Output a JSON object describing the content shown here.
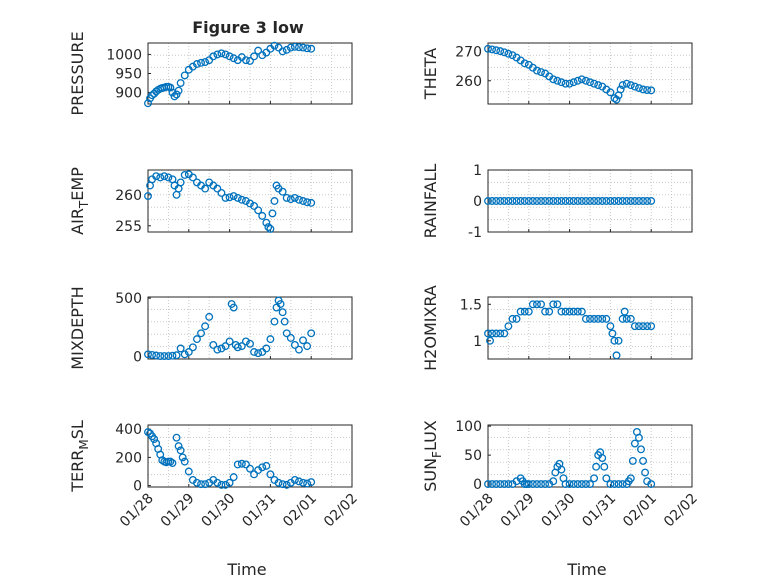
{
  "figure_title": "Figure 3 low",
  "colors": {
    "marker": "#0072bd",
    "axes": "#262626",
    "grid": "#c8c8c8"
  },
  "x_axis": {
    "label": "Time",
    "tick_labels": [
      "01/28",
      "01/29",
      "01/30",
      "01/31",
      "02/01",
      "02/02"
    ]
  },
  "chart_data": [
    {
      "type": "scatter",
      "id": "pressure",
      "ylabel": "PRESSURE",
      "title": "Figure 3 low",
      "ylim": [
        870,
        1030
      ],
      "yticks": [
        900,
        950,
        1000
      ],
      "xlim": [
        0,
        5
      ],
      "series": [
        {
          "name": "PRESSURE",
          "x": [
            0.0,
            0.05,
            0.1,
            0.15,
            0.2,
            0.25,
            0.3,
            0.35,
            0.4,
            0.45,
            0.5,
            0.55,
            0.6,
            0.65,
            0.7,
            0.75,
            0.8,
            0.9,
            1.0,
            1.1,
            1.2,
            1.3,
            1.4,
            1.5,
            1.6,
            1.7,
            1.8,
            1.9,
            2.0,
            2.1,
            2.2,
            2.3,
            2.4,
            2.5,
            2.6,
            2.7,
            2.8,
            2.9,
            3.0,
            3.1,
            3.2,
            3.3,
            3.4,
            3.5,
            3.6,
            3.7,
            3.8,
            3.9,
            4.0
          ],
          "y": [
            872,
            885,
            893,
            897,
            903,
            907,
            910,
            912,
            913,
            915,
            915,
            913,
            900,
            890,
            895,
            905,
            925,
            945,
            960,
            968,
            975,
            978,
            980,
            985,
            995,
            1000,
            1003,
            1000,
            995,
            990,
            985,
            993,
            985,
            983,
            995,
            1010,
            998,
            1005,
            1015,
            1023,
            1018,
            1008,
            1012,
            1018,
            1020,
            1019,
            1018,
            1016,
            1015
          ]
        }
      ]
    },
    {
      "type": "scatter",
      "id": "theta",
      "ylabel": "THETA",
      "ylim": [
        252,
        273
      ],
      "yticks": [
        260,
        270
      ],
      "xlim": [
        0,
        5
      ],
      "series": [
        {
          "name": "THETA",
          "x": [
            0.0,
            0.1,
            0.2,
            0.3,
            0.4,
            0.5,
            0.6,
            0.7,
            0.8,
            0.9,
            1.0,
            1.1,
            1.2,
            1.3,
            1.4,
            1.5,
            1.6,
            1.7,
            1.8,
            1.9,
            2.0,
            2.1,
            2.2,
            2.3,
            2.4,
            2.5,
            2.6,
            2.7,
            2.8,
            2.9,
            3.0,
            3.1,
            3.15,
            3.2,
            3.25,
            3.3,
            3.4,
            3.5,
            3.6,
            3.7,
            3.8,
            3.9,
            4.0
          ],
          "y": [
            271,
            270.8,
            270.5,
            270.2,
            269.8,
            269.3,
            268.8,
            268,
            267,
            266,
            265.5,
            264.5,
            263.5,
            263,
            262.5,
            261.5,
            260.5,
            260,
            259.5,
            259,
            259,
            259.5,
            260,
            260.5,
            260,
            259.5,
            259,
            258.5,
            258,
            257,
            256,
            254,
            253.5,
            255,
            257,
            258.5,
            259,
            258.5,
            258,
            257.5,
            257,
            256.8,
            256.7
          ]
        }
      ]
    },
    {
      "type": "scatter",
      "id": "air-temp",
      "ylabel": "AIR_TEMP",
      "ylim": [
        254,
        264
      ],
      "yticks": [
        255,
        260
      ],
      "xlim": [
        0,
        5
      ],
      "series": [
        {
          "name": "AIR_TEMP",
          "x": [
            0.0,
            0.05,
            0.1,
            0.2,
            0.3,
            0.4,
            0.5,
            0.6,
            0.65,
            0.7,
            0.75,
            0.8,
            0.9,
            1.0,
            1.1,
            1.2,
            1.3,
            1.4,
            1.5,
            1.6,
            1.7,
            1.8,
            1.9,
            2.0,
            2.1,
            2.2,
            2.3,
            2.4,
            2.5,
            2.6,
            2.7,
            2.8,
            2.9,
            2.95,
            3.0,
            3.05,
            3.1,
            3.15,
            3.2,
            3.3,
            3.4,
            3.5,
            3.6,
            3.7,
            3.8,
            3.9,
            4.0
          ],
          "y": [
            259.8,
            261.5,
            262.5,
            263,
            262.8,
            263,
            262.8,
            262.5,
            261.5,
            260,
            261,
            262,
            263.2,
            263.3,
            262.8,
            262,
            261.5,
            261,
            262,
            261.5,
            261,
            260.3,
            259.5,
            259.6,
            259.8,
            259.5,
            259.2,
            259,
            258.6,
            258.2,
            257.5,
            256.6,
            255.5,
            254.8,
            254.5,
            257,
            259,
            261.5,
            261,
            260.5,
            259.5,
            259.3,
            259.5,
            259.2,
            259,
            258.8,
            258.7
          ]
        }
      ]
    },
    {
      "type": "scatter",
      "id": "rainfall",
      "ylabel": "RAINFALL",
      "ylim": [
        -1,
        1
      ],
      "yticks": [
        -1,
        0,
        1
      ],
      "xlim": [
        0,
        5
      ],
      "series": [
        {
          "name": "RAINFALL",
          "x": [
            0.0,
            0.1,
            0.2,
            0.3,
            0.4,
            0.5,
            0.6,
            0.7,
            0.8,
            0.9,
            1.0,
            1.1,
            1.2,
            1.3,
            1.4,
            1.5,
            1.6,
            1.7,
            1.8,
            1.9,
            2.0,
            2.1,
            2.2,
            2.3,
            2.4,
            2.5,
            2.6,
            2.7,
            2.8,
            2.9,
            3.0,
            3.1,
            3.2,
            3.3,
            3.4,
            3.5,
            3.6,
            3.7,
            3.8,
            3.9,
            4.0
          ],
          "y": [
            0,
            0,
            0,
            0,
            0,
            0,
            0,
            0,
            0,
            0,
            0,
            0,
            0,
            0,
            0,
            0,
            0,
            0,
            0,
            0,
            0,
            0,
            0,
            0,
            0,
            0,
            0,
            0,
            0,
            0,
            0,
            0,
            0,
            0,
            0,
            0,
            0,
            0,
            0,
            0,
            0
          ]
        }
      ]
    },
    {
      "type": "scatter",
      "id": "mixdepth",
      "ylabel": "MIXDEPTH",
      "ylim": [
        -20,
        510
      ],
      "yticks": [
        0,
        500
      ],
      "xlim": [
        0,
        5
      ],
      "series": [
        {
          "name": "MIXDEPTH",
          "x": [
            0.0,
            0.1,
            0.2,
            0.3,
            0.4,
            0.5,
            0.6,
            0.7,
            0.8,
            0.9,
            1.0,
            1.1,
            1.2,
            1.3,
            1.4,
            1.5,
            1.6,
            1.7,
            1.8,
            1.9,
            2.0,
            2.05,
            2.1,
            2.15,
            2.2,
            2.3,
            2.4,
            2.5,
            2.6,
            2.7,
            2.8,
            2.9,
            3.0,
            3.1,
            3.15,
            3.2,
            3.25,
            3.3,
            3.35,
            3.4,
            3.5,
            3.6,
            3.7,
            3.8,
            3.9,
            4.0
          ],
          "y": [
            20,
            15,
            10,
            5,
            5,
            5,
            8,
            12,
            70,
            20,
            40,
            80,
            150,
            200,
            260,
            340,
            100,
            60,
            70,
            90,
            130,
            450,
            420,
            100,
            80,
            90,
            130,
            110,
            40,
            30,
            40,
            70,
            150,
            300,
            420,
            480,
            450,
            380,
            300,
            200,
            160,
            100,
            60,
            140,
            90,
            200
          ]
        }
      ]
    },
    {
      "type": "scatter",
      "id": "h2omixra",
      "ylabel": "H2OMIXRA",
      "ylim": [
        0.75,
        1.6
      ],
      "yticks": [
        1,
        1.5
      ],
      "xlim": [
        0,
        5
      ],
      "series": [
        {
          "name": "H2OMIXRA",
          "x": [
            0.0,
            0.05,
            0.1,
            0.2,
            0.3,
            0.4,
            0.5,
            0.6,
            0.7,
            0.8,
            0.9,
            1.0,
            1.1,
            1.2,
            1.3,
            1.4,
            1.5,
            1.6,
            1.7,
            1.8,
            1.9,
            2.0,
            2.1,
            2.2,
            2.3,
            2.4,
            2.5,
            2.6,
            2.7,
            2.8,
            2.9,
            3.0,
            3.05,
            3.1,
            3.15,
            3.2,
            3.3,
            3.35,
            3.4,
            3.5,
            3.6,
            3.7,
            3.8,
            3.9,
            4.0
          ],
          "y": [
            1.1,
            1.0,
            1.1,
            1.1,
            1.1,
            1.1,
            1.2,
            1.3,
            1.3,
            1.4,
            1.4,
            1.4,
            1.5,
            1.5,
            1.5,
            1.4,
            1.4,
            1.5,
            1.5,
            1.4,
            1.4,
            1.4,
            1.4,
            1.4,
            1.4,
            1.3,
            1.3,
            1.3,
            1.3,
            1.3,
            1.3,
            1.2,
            1.1,
            1.0,
            0.8,
            1.0,
            1.3,
            1.4,
            1.3,
            1.3,
            1.2,
            1.2,
            1.2,
            1.2,
            1.2
          ]
        }
      ]
    },
    {
      "type": "scatter",
      "id": "terr-msl",
      "ylabel": "TERR_MSL",
      "ylim": [
        -10,
        430
      ],
      "yticks": [
        0,
        200,
        400
      ],
      "xlim": [
        0,
        5
      ],
      "series": [
        {
          "name": "TERR_MSL",
          "x": [
            0.0,
            0.05,
            0.1,
            0.15,
            0.2,
            0.25,
            0.3,
            0.35,
            0.4,
            0.45,
            0.5,
            0.55,
            0.6,
            0.7,
            0.75,
            0.8,
            0.85,
            0.9,
            1.0,
            1.1,
            1.2,
            1.3,
            1.4,
            1.5,
            1.6,
            1.7,
            1.8,
            1.9,
            2.0,
            2.1,
            2.2,
            2.3,
            2.4,
            2.5,
            2.6,
            2.7,
            2.8,
            2.9,
            3.0,
            3.1,
            3.2,
            3.3,
            3.4,
            3.5,
            3.6,
            3.7,
            3.8,
            3.9,
            4.0
          ],
          "y": [
            380,
            370,
            350,
            330,
            300,
            260,
            220,
            180,
            170,
            165,
            170,
            170,
            160,
            340,
            280,
            250,
            200,
            170,
            100,
            40,
            20,
            10,
            10,
            20,
            40,
            20,
            5,
            5,
            20,
            60,
            150,
            155,
            150,
            120,
            80,
            110,
            130,
            140,
            80,
            40,
            20,
            10,
            5,
            20,
            40,
            30,
            20,
            15,
            25
          ]
        }
      ]
    },
    {
      "type": "scatter",
      "id": "sun-flux",
      "ylabel": "SUN_FLUX",
      "ylim": [
        -5,
        102
      ],
      "yticks": [
        0,
        50,
        100
      ],
      "xlim": [
        0,
        5
      ],
      "series": [
        {
          "name": "SUN_FLUX",
          "x": [
            0.0,
            0.1,
            0.2,
            0.3,
            0.4,
            0.5,
            0.6,
            0.7,
            0.8,
            0.85,
            0.9,
            0.95,
            1.0,
            1.1,
            1.2,
            1.3,
            1.4,
            1.5,
            1.6,
            1.65,
            1.7,
            1.75,
            1.8,
            1.85,
            1.9,
            2.0,
            2.1,
            2.2,
            2.3,
            2.4,
            2.5,
            2.6,
            2.65,
            2.7,
            2.75,
            2.8,
            2.85,
            2.9,
            3.0,
            3.1,
            3.2,
            3.3,
            3.4,
            3.45,
            3.5,
            3.55,
            3.6,
            3.65,
            3.7,
            3.75,
            3.8,
            3.85,
            3.9,
            4.0
          ],
          "y": [
            0,
            0,
            0,
            0,
            0,
            0,
            0,
            5,
            10,
            5,
            0,
            0,
            0,
            0,
            0,
            0,
            0,
            0,
            5,
            20,
            30,
            35,
            25,
            10,
            0,
            0,
            0,
            0,
            0,
            0,
            0,
            10,
            30,
            50,
            55,
            45,
            30,
            10,
            0,
            0,
            0,
            0,
            0,
            5,
            10,
            40,
            70,
            90,
            80,
            60,
            40,
            20,
            5,
            0
          ]
        }
      ]
    }
  ]
}
